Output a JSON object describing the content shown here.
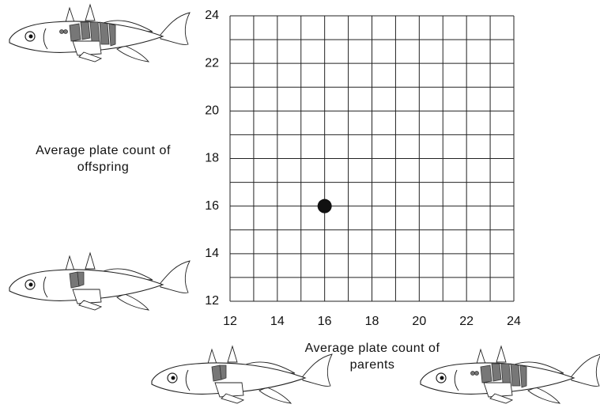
{
  "chart_data": {
    "type": "scatter",
    "x_label": "Average plate count of parents",
    "y_label": "Average plate count of offspring",
    "x": [
      16
    ],
    "values": [
      16
    ],
    "color": "#111111",
    "xlim": [
      12,
      24
    ],
    "ylim": [
      12,
      24
    ],
    "xticks": [
      12,
      14,
      16,
      18,
      20,
      22,
      24
    ],
    "yticks": [
      12,
      14,
      16,
      18,
      20,
      22,
      24
    ],
    "grid": true,
    "minor_grid": true
  }
}
